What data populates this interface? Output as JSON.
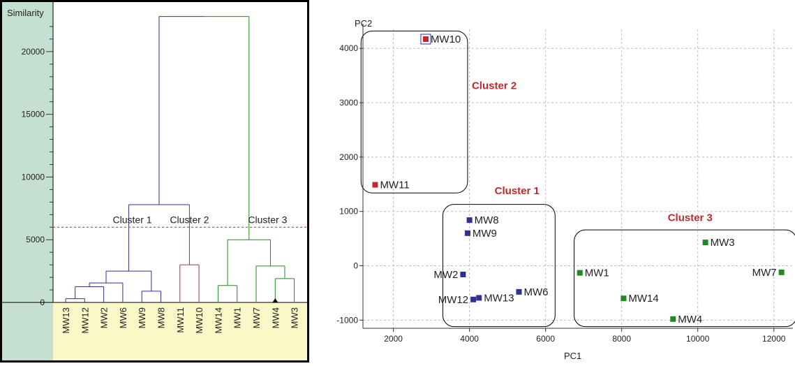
{
  "colors": {
    "cluster1": "#2e3092",
    "cluster2": "#c0282d",
    "cluster3": "#1f8a24",
    "cut_line": "#c0282d",
    "axis_band": "#c6dfd3",
    "leaf_band": "#fbf8c7",
    "grid": "#bbbbbb"
  },
  "chart_data": [
    {
      "type": "dendrogram",
      "ylabel": "Similarity",
      "ylim": [
        0,
        23000
      ],
      "yticks": [
        "0",
        "5000",
        "10000",
        "15000",
        "20000"
      ],
      "cut_value": 6000,
      "leaves": [
        {
          "name": "MW13",
          "cluster": 1
        },
        {
          "name": "MW12",
          "cluster": 1
        },
        {
          "name": "MW2",
          "cluster": 1
        },
        {
          "name": "MW6",
          "cluster": 1
        },
        {
          "name": "MW9",
          "cluster": 1
        },
        {
          "name": "MW8",
          "cluster": 1
        },
        {
          "name": "MW11",
          "cluster": 2
        },
        {
          "name": "MW10",
          "cluster": 2
        },
        {
          "name": "MW14",
          "cluster": 3
        },
        {
          "name": "MW1",
          "cluster": 3
        },
        {
          "name": "MW7",
          "cluster": 3
        },
        {
          "name": "MW4",
          "cluster": 3,
          "highlight": true
        },
        {
          "name": "MW3",
          "cluster": 3
        }
      ],
      "merges": [
        {
          "left": "MW13",
          "right": "MW12",
          "height": 300,
          "cluster": 1
        },
        {
          "left": "m0",
          "right": "MW2",
          "height": 1250,
          "cluster": 1
        },
        {
          "left": "m1",
          "right": "MW6",
          "height": 1550,
          "cluster": 1
        },
        {
          "left": "MW9",
          "right": "MW8",
          "height": 900,
          "cluster": 1
        },
        {
          "left": "m2",
          "right": "m3",
          "height": 2500,
          "cluster": 1
        },
        {
          "left": "MW11",
          "right": "MW10",
          "height": 3000,
          "cluster": 2
        },
        {
          "left": "MW4",
          "right": "MW3",
          "height": 1900,
          "cluster": 3
        },
        {
          "left": "MW7",
          "right": "m6",
          "height": 2900,
          "cluster": 3
        },
        {
          "left": "MW14",
          "right": "MW1",
          "height": 1350,
          "cluster": 3
        },
        {
          "left": "m8",
          "right": "m7",
          "height": 5000,
          "cluster": 3
        },
        {
          "left": "m4",
          "right": "m5",
          "height": 7800,
          "cluster": 0
        },
        {
          "left": "m10",
          "right": "m9",
          "height": 22800,
          "cluster": 0
        }
      ],
      "cluster_labels": [
        {
          "text": "Cluster 1",
          "x": 3.5,
          "y": 6200
        },
        {
          "text": "Cluster 2",
          "x": 6.5,
          "y": 6200
        },
        {
          "text": "Cluster 3",
          "x": 10.6,
          "y": 6200
        }
      ]
    },
    {
      "type": "scatter",
      "xlabel": "PC1",
      "ylabel": "PC2",
      "xlim": [
        1200,
        12500
      ],
      "ylim": [
        -1150,
        4350
      ],
      "xticks": [
        2000,
        4000,
        6000,
        8000,
        10000,
        12000
      ],
      "yticks": [
        -1000,
        0,
        1000,
        2000,
        3000,
        4000
      ],
      "points": [
        {
          "label": "MW10",
          "x": 2850,
          "y": 4170,
          "cluster": 2,
          "highlight": true,
          "label_side": "right"
        },
        {
          "label": "MW11",
          "x": 1520,
          "y": 1490,
          "cluster": 2,
          "label_side": "right"
        },
        {
          "label": "MW8",
          "x": 4000,
          "y": 840,
          "cluster": 1,
          "label_side": "right"
        },
        {
          "label": "MW9",
          "x": 3950,
          "y": 600,
          "cluster": 1,
          "label_side": "right"
        },
        {
          "label": "MW2",
          "x": 3830,
          "y": -160,
          "cluster": 1,
          "label_side": "left"
        },
        {
          "label": "MW12",
          "x": 4100,
          "y": -620,
          "cluster": 1,
          "label_side": "left"
        },
        {
          "label": "MW13",
          "x": 4250,
          "y": -590,
          "cluster": 1,
          "label_side": "right"
        },
        {
          "label": "MW6",
          "x": 5300,
          "y": -480,
          "cluster": 1,
          "label_side": "right"
        },
        {
          "label": "MW3",
          "x": 10200,
          "y": 430,
          "cluster": 3,
          "label_side": "right"
        },
        {
          "label": "MW7",
          "x": 12200,
          "y": -120,
          "cluster": 3,
          "label_side": "left"
        },
        {
          "label": "MW1",
          "x": 6900,
          "y": -130,
          "cluster": 3,
          "label_side": "right"
        },
        {
          "label": "MW14",
          "x": 8050,
          "y": -600,
          "cluster": 3,
          "label_side": "right"
        },
        {
          "label": "MW4",
          "x": 9350,
          "y": -980,
          "cluster": 3,
          "label_side": "right"
        }
      ],
      "cluster_boxes": [
        {
          "label": "Cluster 2",
          "cluster": 2,
          "x0": 1150,
          "x1": 3950,
          "y0": 1340,
          "y1": 4320,
          "label_x": 4650,
          "label_y": 3250
        },
        {
          "label": "Cluster 1",
          "cluster": 1,
          "x0": 3300,
          "x1": 6250,
          "y0": -1120,
          "y1": 1130,
          "label_x": 5250,
          "label_y": 1320
        },
        {
          "label": "Cluster 3",
          "cluster": 3,
          "x0": 6750,
          "x1": 12600,
          "y0": -1120,
          "y1": 660,
          "label_x": 9800,
          "label_y": 820
        }
      ]
    }
  ]
}
